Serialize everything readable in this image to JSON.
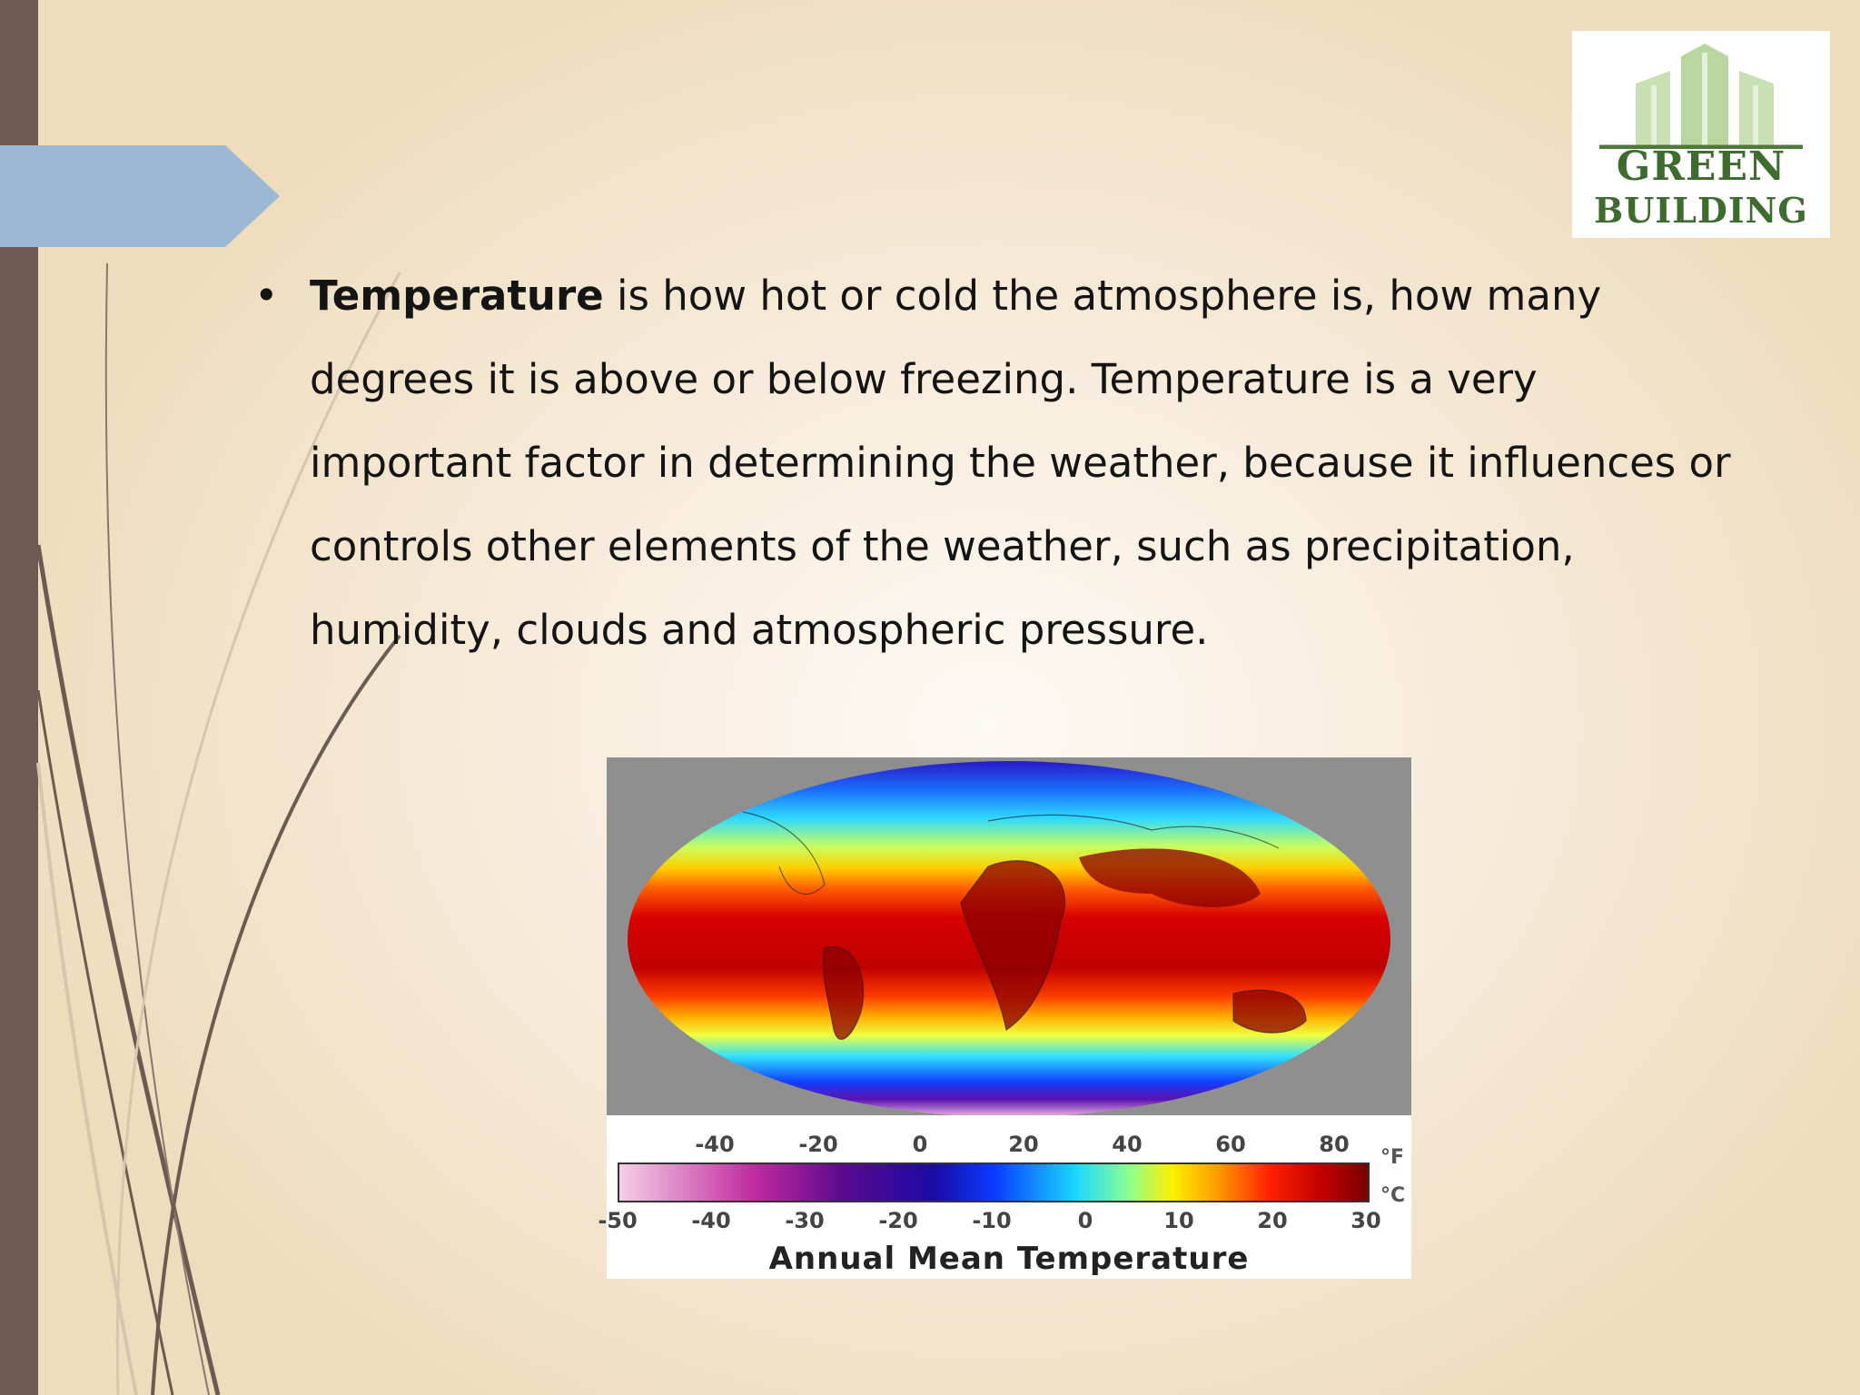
{
  "logo": {
    "word1": "GREEN",
    "word2": "BUILDING"
  },
  "bullet": {
    "marker": "•",
    "term": "Temperature",
    "text": " is how hot or cold the atmosphere is, how many degrees it is above or below freezing. Temperature is a very important factor in determining the weather, because it influences or controls other elements of the weather, such as precipitation, humidity, clouds and atmospheric pressure."
  },
  "figure": {
    "caption": "Annual Mean Temperature",
    "unit_f": "°F",
    "unit_c": "°C",
    "ticks_f": [
      "-40",
      "-20",
      "0",
      "20",
      "40",
      "60",
      "80"
    ],
    "ticks_c": [
      "-50",
      "-40",
      "-30",
      "-20",
      "-10",
      "0",
      "10",
      "20",
      "30"
    ]
  }
}
